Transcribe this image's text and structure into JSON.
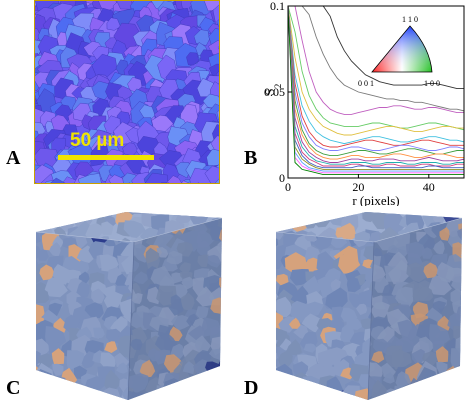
{
  "panels": {
    "a": {
      "letter": "A",
      "scale_label": "50 µm"
    },
    "b": {
      "letter": "B"
    },
    "c": {
      "letter": "C"
    },
    "d": {
      "letter": "D"
    }
  },
  "colors": {
    "map_base": "#6a5cf0",
    "cube_base": "#7f93bd",
    "cube_grain_tan": "#d6a27c",
    "scale_bar": "#f0e400",
    "frame": "#c8a000"
  },
  "legend": {
    "top_label": "1 1 0",
    "left_label": "0 0 1",
    "right_label": "1 0 0"
  },
  "chart_data": {
    "type": "line",
    "ylabel": "S",
    "ylabel_sub": "2",
    "xlabel": "r (pixels)",
    "xlim": [
      0,
      50
    ],
    "ylim": [
      0,
      0.1
    ],
    "x_ticks": [
      "0",
      "20",
      "40"
    ],
    "x_tick_values": [
      0,
      20,
      40
    ],
    "y_ticks": [
      "0",
      "0.05",
      "0.1"
    ],
    "y_tick_values": [
      0,
      0.05,
      0.1
    ],
    "x": [
      0,
      2,
      4,
      6,
      8,
      10,
      12,
      14,
      16,
      18,
      20,
      22,
      24,
      26,
      28,
      30,
      32,
      34,
      36,
      38,
      40,
      42,
      44,
      46,
      48,
      50
    ],
    "series": [
      {
        "color": "#7a7a7a",
        "values": [
          0.1,
          0.1,
          0.1,
          0.095,
          0.082,
          0.072,
          0.064,
          0.058,
          0.054,
          0.052,
          0.05,
          0.049,
          0.048,
          0.047,
          0.046,
          0.046,
          0.045,
          0.045,
          0.044,
          0.044,
          0.043,
          0.042,
          0.041,
          0.04,
          0.04,
          0.039
        ]
      },
      {
        "color": "#333333",
        "values": [
          0.1,
          0.1,
          0.1,
          0.1,
          0.1,
          0.1,
          0.094,
          0.082,
          0.074,
          0.068,
          0.064,
          0.06,
          0.058,
          0.056,
          0.055,
          0.054,
          0.054,
          0.054,
          0.054,
          0.054,
          0.055,
          0.055,
          0.054,
          0.053,
          0.052,
          0.052
        ]
      },
      {
        "color": "#c060c0",
        "values": [
          0.1,
          0.1,
          0.08,
          0.062,
          0.05,
          0.044,
          0.04,
          0.038,
          0.037,
          0.037,
          0.038,
          0.039,
          0.04,
          0.041,
          0.041,
          0.042,
          0.042,
          0.041,
          0.04,
          0.04,
          0.041,
          0.041,
          0.04,
          0.039,
          0.038,
          0.038
        ]
      },
      {
        "color": "#66cc66",
        "values": [
          0.1,
          0.085,
          0.062,
          0.048,
          0.04,
          0.035,
          0.032,
          0.031,
          0.03,
          0.03,
          0.03,
          0.031,
          0.032,
          0.032,
          0.031,
          0.03,
          0.029,
          0.029,
          0.03,
          0.031,
          0.032,
          0.032,
          0.031,
          0.03,
          0.029,
          0.028
        ]
      },
      {
        "color": "#e0c040",
        "values": [
          0.1,
          0.07,
          0.05,
          0.04,
          0.034,
          0.03,
          0.028,
          0.026,
          0.025,
          0.025,
          0.026,
          0.027,
          0.028,
          0.029,
          0.03,
          0.03,
          0.029,
          0.028,
          0.027,
          0.027,
          0.028,
          0.029,
          0.03,
          0.03,
          0.029,
          0.029
        ]
      },
      {
        "color": "#40c0e0",
        "values": [
          0.1,
          0.06,
          0.042,
          0.033,
          0.027,
          0.024,
          0.022,
          0.021,
          0.02,
          0.021,
          0.022,
          0.023,
          0.024,
          0.024,
          0.023,
          0.022,
          0.021,
          0.021,
          0.022,
          0.023,
          0.024,
          0.024,
          0.023,
          0.022,
          0.022,
          0.021
        ]
      },
      {
        "color": "#e04040",
        "values": [
          0.1,
          0.055,
          0.036,
          0.027,
          0.022,
          0.019,
          0.018,
          0.018,
          0.019,
          0.02,
          0.021,
          0.022,
          0.022,
          0.021,
          0.02,
          0.019,
          0.019,
          0.02,
          0.021,
          0.022,
          0.022,
          0.021,
          0.02,
          0.019,
          0.019,
          0.019
        ]
      },
      {
        "color": "#8080ff",
        "values": [
          0.1,
          0.05,
          0.032,
          0.024,
          0.019,
          0.017,
          0.016,
          0.016,
          0.017,
          0.018,
          0.018,
          0.017,
          0.016,
          0.016,
          0.017,
          0.018,
          0.019,
          0.019,
          0.018,
          0.017,
          0.016,
          0.016,
          0.017,
          0.018,
          0.018,
          0.017
        ]
      },
      {
        "color": "#40a040",
        "values": [
          0.1,
          0.045,
          0.028,
          0.02,
          0.016,
          0.014,
          0.013,
          0.013,
          0.014,
          0.015,
          0.016,
          0.016,
          0.015,
          0.014,
          0.014,
          0.015,
          0.016,
          0.017,
          0.017,
          0.016,
          0.015,
          0.014,
          0.014,
          0.015,
          0.016,
          0.016
        ]
      },
      {
        "color": "#ff9040",
        "values": [
          0.1,
          0.04,
          0.025,
          0.018,
          0.014,
          0.012,
          0.011,
          0.011,
          0.012,
          0.013,
          0.013,
          0.012,
          0.012,
          0.012,
          0.013,
          0.014,
          0.014,
          0.013,
          0.012,
          0.012,
          0.013,
          0.014,
          0.014,
          0.013,
          0.012,
          0.012
        ]
      },
      {
        "color": "#a040a0",
        "values": [
          0.1,
          0.035,
          0.021,
          0.015,
          0.012,
          0.01,
          0.009,
          0.009,
          0.01,
          0.011,
          0.011,
          0.01,
          0.01,
          0.011,
          0.011,
          0.011,
          0.01,
          0.01,
          0.01,
          0.011,
          0.012,
          0.011,
          0.01,
          0.01,
          0.01,
          0.011
        ]
      },
      {
        "color": "#20b0b0",
        "values": [
          0.1,
          0.03,
          0.018,
          0.013,
          0.01,
          0.009,
          0.008,
          0.008,
          0.008,
          0.009,
          0.009,
          0.009,
          0.008,
          0.008,
          0.009,
          0.009,
          0.009,
          0.008,
          0.008,
          0.009,
          0.009,
          0.009,
          0.008,
          0.008,
          0.009,
          0.009
        ]
      },
      {
        "color": "#d04080",
        "values": [
          0.1,
          0.026,
          0.015,
          0.011,
          0.009,
          0.007,
          0.007,
          0.007,
          0.007,
          0.008,
          0.008,
          0.007,
          0.007,
          0.007,
          0.008,
          0.008,
          0.007,
          0.007,
          0.007,
          0.008,
          0.008,
          0.007,
          0.007,
          0.007,
          0.008,
          0.008
        ]
      },
      {
        "color": "#4060c0",
        "values": [
          0.1,
          0.022,
          0.013,
          0.009,
          0.007,
          0.006,
          0.006,
          0.006,
          0.006,
          0.006,
          0.007,
          0.007,
          0.006,
          0.006,
          0.006,
          0.006,
          0.006,
          0.006,
          0.006,
          0.006,
          0.007,
          0.007,
          0.006,
          0.006,
          0.006,
          0.006
        ]
      },
      {
        "color": "#909020",
        "values": [
          0.1,
          0.018,
          0.011,
          0.008,
          0.006,
          0.005,
          0.005,
          0.005,
          0.005,
          0.005,
          0.005,
          0.005,
          0.005,
          0.005,
          0.005,
          0.005,
          0.005,
          0.005,
          0.005,
          0.005,
          0.005,
          0.005,
          0.005,
          0.005,
          0.005,
          0.005
        ]
      },
      {
        "color": "#60a0ff",
        "values": [
          0.1,
          0.015,
          0.009,
          0.006,
          0.005,
          0.004,
          0.004,
          0.004,
          0.004,
          0.004,
          0.004,
          0.004,
          0.004,
          0.004,
          0.004,
          0.004,
          0.004,
          0.004,
          0.004,
          0.004,
          0.004,
          0.004,
          0.004,
          0.004,
          0.004,
          0.004
        ]
      },
      {
        "color": "#ff60ff",
        "values": [
          0.1,
          0.012,
          0.007,
          0.005,
          0.004,
          0.003,
          0.003,
          0.003,
          0.003,
          0.003,
          0.003,
          0.003,
          0.003,
          0.003,
          0.003,
          0.003,
          0.003,
          0.003,
          0.003,
          0.003,
          0.003,
          0.003,
          0.003,
          0.003,
          0.003,
          0.003
        ]
      },
      {
        "color": "#008000",
        "values": [
          0.1,
          0.009,
          0.005,
          0.004,
          0.003,
          0.002,
          0.002,
          0.002,
          0.002,
          0.002,
          0.002,
          0.002,
          0.002,
          0.002,
          0.002,
          0.002,
          0.002,
          0.002,
          0.002,
          0.002,
          0.002,
          0.002,
          0.002,
          0.002,
          0.002,
          0.002
        ]
      }
    ]
  }
}
